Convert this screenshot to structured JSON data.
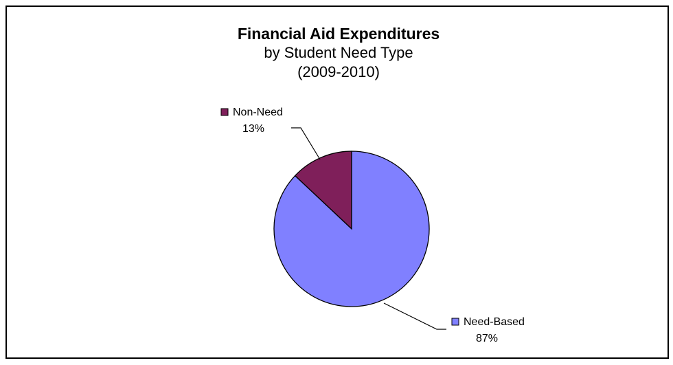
{
  "chart_data": {
    "type": "pie",
    "title": "Financial Aid Expenditures",
    "subtitle_lines": [
      "by Student Need Type",
      "(2009-2010)"
    ],
    "slices": [
      {
        "name": "Non-Need",
        "value": 13,
        "label": "13%",
        "color": "#7f1f5a"
      },
      {
        "name": "Need-Based",
        "value": 87,
        "label": "87%",
        "color": "#8080ff"
      }
    ]
  }
}
